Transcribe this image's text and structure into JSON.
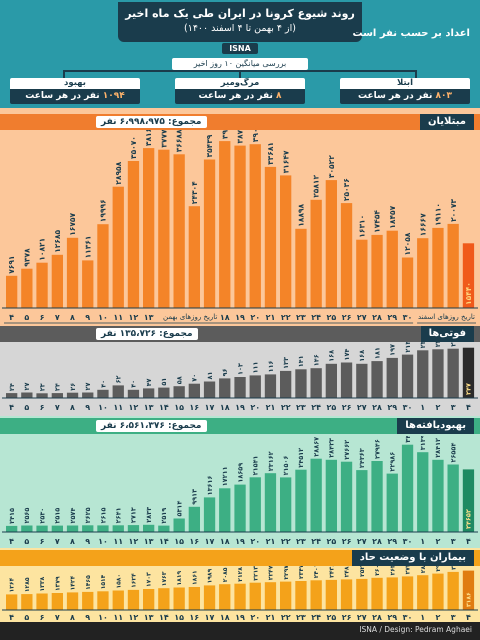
{
  "header": {
    "title": "روند شیوع کرونا در ایران طی یک ماه اخیر",
    "subtitle": "(از ۴ بهمن تا ۴ اسفند ۱۴۰۰)",
    "badge": "ISNA",
    "unit_note": "اعداد بر حسب نفر است",
    "avg_note": "بررسی میانگین ۱۰ روز اخیر",
    "categories": [
      {
        "name": "ابتلا",
        "value": "۸۰۳",
        "unit": "نفر در هر ساعت"
      },
      {
        "name": "مرگ‌ومیر",
        "value": "۸",
        "unit": "نفر در هر ساعت"
      },
      {
        "name": "بهبود",
        "value": "۱۰۹۴",
        "unit": "نفر در هر ساعت"
      }
    ]
  },
  "sections": {
    "cases": {
      "title": "مبتلایان",
      "total": "مجموع: ۶،۹۹۸،۹۷۵ نفر",
      "bahman_label": "تاریخ روزهای بهمن",
      "esfand_label": "تاریخ روزهای اسفند"
    },
    "deaths": {
      "title": "فوتی‌ها",
      "total": "مجموع: ۱۳۵،۷۲۶ نفر"
    },
    "recovered": {
      "title": "بهبودیافته‌ها",
      "total": "مجموع: ۶،۵۶۱،۳۷۶ نفر"
    },
    "critical": {
      "title": "بیماران با وضعیت حاد"
    }
  },
  "chart_data": [
    {
      "type": "bar",
      "title": "مبتلایان",
      "categories": [
        "۴",
        "۵",
        "۶",
        "۷",
        "۸",
        "۹",
        "۱۰",
        "۱۱",
        "۱۲",
        "۱۳",
        "۱۴",
        "۱۵",
        "۱۶",
        "۱۷",
        "۱۸",
        "۱۹",
        "۲۰",
        "۲۱",
        "۲۲",
        "۲۳",
        "۲۴",
        "۲۵",
        "۲۶",
        "۲۷",
        "۲۸",
        "۲۹",
        "۳۰",
        "۱",
        "۲",
        "۳",
        "۴"
      ],
      "values": [
        7691,
        9378,
        10821,
        12685,
        16757,
        11361,
        19996,
        28958,
        35070,
        38160,
        37775,
        36688,
        24304,
        35439,
        39819,
        38757,
        39085,
        33681,
        31647,
        18898,
        25812,
        30522,
        25036,
        16310,
        17454,
        18457,
        12058,
        16667,
        19110,
        20073,
        15440
      ],
      "labels": [
        "۷۶۹۱",
        "۹۳۷۸",
        "۱۰۸۲۱",
        "۱۲۶۸۵",
        "۱۶۷۵۷",
        "۱۱۳۶۱",
        "۱۹۹۹۶",
        "۲۸۹۵۸",
        "۳۵۰۷۰",
        "۳۸۱۶۰",
        "۳۷۷۷۵",
        "۳۶۶۸۸",
        "۲۴۳۰۴",
        "۳۵۴۳۹",
        "۳۹۸۱۹",
        "۳۸۷۵۷",
        "۳۹۰۸۵",
        "۳۳۶۸۱",
        "۳۱۶۴۷",
        "۱۸۸۹۸",
        "۲۵۸۱۲",
        "۳۰۵۲۲",
        "۲۵۰۳۶",
        "۱۶۳۱۰",
        "۱۷۴۵۴",
        "۱۸۴۵۷",
        "۱۲۰۵۸",
        "۱۶۶۶۷",
        "۱۹۱۱۰",
        "۲۰۰۷۳",
        "۱۵۴۴۰"
      ],
      "ylim": [
        0,
        42000
      ],
      "colors": {
        "bg": "#fcc79a",
        "bar": "#f48428",
        "last": "#f05a1a"
      }
    },
    {
      "type": "bar",
      "title": "فوتی‌ها",
      "categories": [
        "۴",
        "۵",
        "۶",
        "۷",
        "۸",
        "۹",
        "۱۰",
        "۱۱",
        "۱۲",
        "۱۳",
        "۱۴",
        "۱۵",
        "۱۶",
        "۱۷",
        "۱۸",
        "۱۹",
        "۲۰",
        "۲۱",
        "۲۲",
        "۲۳",
        "۲۴",
        "۲۵",
        "۲۶",
        "۲۷",
        "۲۸",
        "۲۹",
        "۳۰",
        "۱",
        "۲",
        "۳",
        "۴"
      ],
      "values": [
        24,
        27,
        23,
        24,
        26,
        27,
        40,
        62,
        40,
        47,
        51,
        58,
        70,
        81,
        96,
        103,
        111,
        116,
        133,
        141,
        146,
        168,
        174,
        168,
        181,
        197,
        213,
        234,
        239,
        242,
        247
      ],
      "labels": [
        "۲۴",
        "۲۷",
        "۲۳",
        "۲۴",
        "۲۶",
        "۲۷",
        "۴۰",
        "۶۲",
        "۴۰",
        "۴۷",
        "۵۱",
        "۵۸",
        "۷۰",
        "۸۱",
        "۹۶",
        "۱۰۳",
        "۱۱۱",
        "۱۱۶",
        "۱۳۳",
        "۱۴۱",
        "۱۴۶",
        "۱۶۸",
        "۱۷۴",
        "۱۶۸",
        "۱۸۱",
        "۱۹۷",
        "۲۱۳",
        "۲۳۴",
        "۲۳۹",
        "۲۴۲",
        "۲۴۷"
      ],
      "ylim": [
        0,
        265
      ],
      "colors": {
        "bg": "#c9c9c9",
        "bar": "#5c5c5c",
        "last": "#2b2b2b"
      }
    },
    {
      "type": "bar",
      "title": "بهبودیافته‌ها",
      "categories": [
        "۴",
        "۵",
        "۶",
        "۷",
        "۸",
        "۹",
        "۱۰",
        "۱۱",
        "۱۲",
        "۱۳",
        "۱۴",
        "۱۵",
        "۱۶",
        "۱۷",
        "۱۸",
        "۱۹",
        "۲۰",
        "۲۱",
        "۲۲",
        "۲۳",
        "۲۴",
        "۲۵",
        "۲۶",
        "۲۷",
        "۲۸",
        "۲۹",
        "۳۰",
        "۱",
        "۲",
        "۳",
        "۴"
      ],
      "values": [
        2415,
        2565,
        2530,
        2515,
        2574,
        2625,
        2615,
        2641,
        2713,
        2833,
        2519,
        5314,
        9913,
        13616,
        17211,
        18659,
        21541,
        23162,
        21506,
        24512,
        28867,
        28423,
        27662,
        24363,
        27946,
        22986,
        34352,
        31396,
        28412,
        26554,
        24652
      ],
      "labels": [
        "۲۴۱۵",
        "۲۵۶۵",
        "۲۵۳۰",
        "۲۵۱۵",
        "۲۵۷۴",
        "۲۶۲۵",
        "۲۶۱۵",
        "۲۶۴۱",
        "۲۷۱۳",
        "۲۸۳۳",
        "۲۵۱۹",
        "۵۳۱۴",
        "۹۹۱۳",
        "۱۳۶۱۶",
        "۱۷۲۱۱",
        "۱۸۶۵۹",
        "۲۱۵۴۱",
        "۲۳۱۶۲",
        "۲۱۵۰۶",
        "۲۴۵۱۲",
        "۲۸۸۶۷",
        "۲۸۴۲۳",
        "۲۷۶۶۲",
        "۲۴۳۶۳",
        "۲۷۹۴۶",
        "۲۲۹۸۶",
        "۳۴۳۵۲",
        "۳۱۳۹۶",
        "۲۸۴۱۲",
        "۲۶۵۵۴",
        "۲۴۶۵۲"
      ],
      "ylim": [
        0,
        37000
      ],
      "colors": {
        "bg": "#9fdcc5",
        "bar": "#3daf84",
        "last": "#1e8a62"
      }
    },
    {
      "type": "bar",
      "title": "بیماران با وضعیت حاد",
      "categories": [
        "۴",
        "۵",
        "۶",
        "۷",
        "۸",
        "۹",
        "۱۰",
        "۱۱",
        "۱۲",
        "۱۳",
        "۱۴",
        "۱۵",
        "۱۶",
        "۱۷",
        "۱۸",
        "۱۹",
        "۲۰",
        "۲۱",
        "۲۲",
        "۲۳",
        "۲۴",
        "۲۵",
        "۲۶",
        "۲۷",
        "۲۸",
        "۲۹",
        "۳۰",
        "۱",
        "۲",
        "۳",
        "۴"
      ],
      "values": [
        1264,
        1285,
        1338,
        1379,
        1424,
        1465,
        1514,
        1580,
        1624,
        1703,
        1763,
        1819,
        1861,
        1989,
        2085,
        2128,
        2213,
        2247,
        2297,
        2347,
        2401,
        2436,
        2481,
        2521,
        2606,
        2636,
        2721,
        2817,
        2943,
        3083,
        3186
      ],
      "labels": [
        "۱۲۶۴",
        "۱۲۸۵",
        "۱۳۳۸",
        "۱۳۷۹",
        "۱۴۲۴",
        "۱۴۶۵",
        "۱۵۱۴",
        "۱۵۸۰",
        "۱۶۲۴",
        "۱۷۰۳",
        "۱۷۶۳",
        "۱۸۱۹",
        "۱۸۶۱",
        "۱۹۸۹",
        "۲۰۸۵",
        "۲۱۲۸",
        "۲۲۱۳",
        "۲۲۴۷",
        "۲۲۹۷",
        "۲۳۴۷",
        "۲۴۰۱",
        "۲۴۳۶",
        "۲۴۸۱",
        "۲۵۲۱",
        "۲۶۰۶",
        "۲۶۳۶",
        "۲۷۲۱",
        "۲۸۱۷",
        "۲۹۴۳",
        "۳۰۸۳",
        "۳۱۸۶"
      ],
      "ylim": [
        0,
        3400
      ],
      "colors": {
        "bg": "#fbd97a",
        "bar": "#f4a21a",
        "last": "#e07c10"
      }
    }
  ],
  "footer": {
    "credit": "ISNA / Design: Pedram Aghaei"
  }
}
